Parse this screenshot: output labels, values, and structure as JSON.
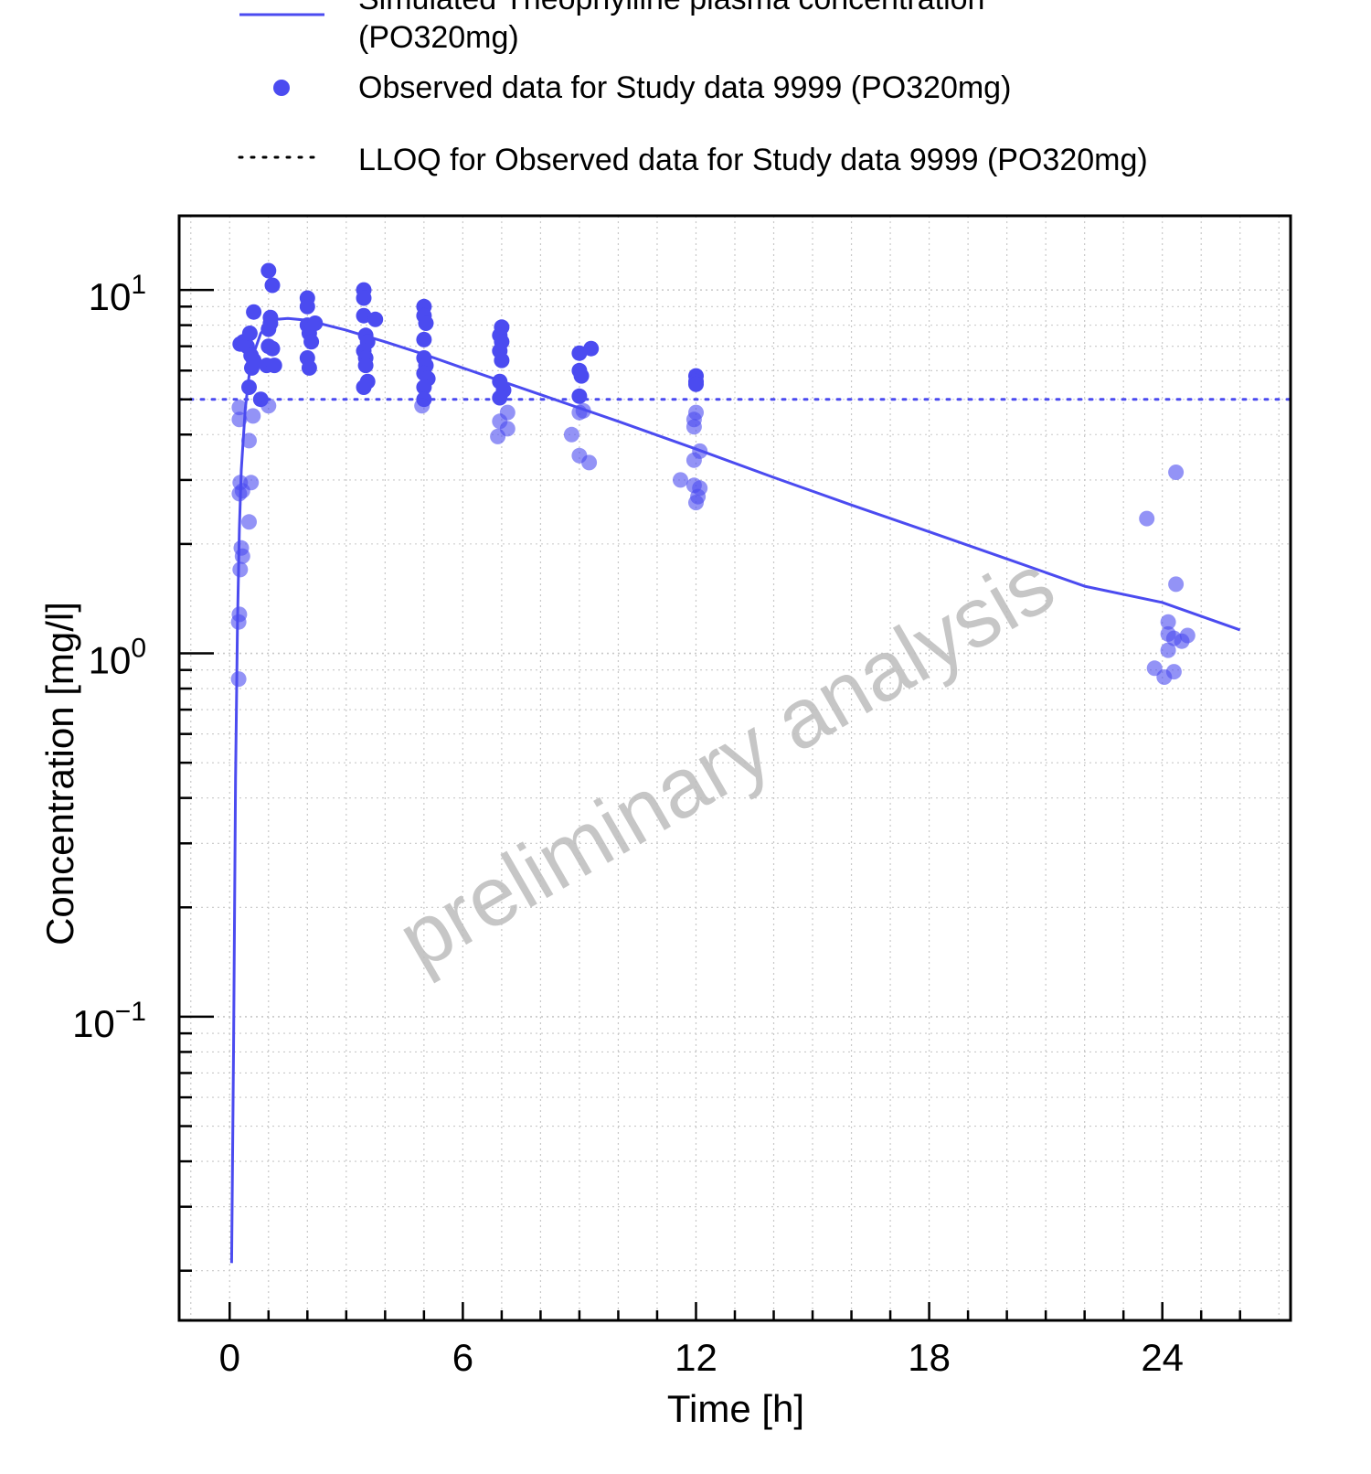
{
  "chart_data": {
    "type": "scatter",
    "xlabel": "Time [h]",
    "ylabel": "Concentration [mg/l]",
    "xlim": [
      -1.3,
      27.3
    ],
    "ylim": [
      0.0146,
      16
    ],
    "yscale": "log",
    "x_ticks": [
      {
        "value": 0,
        "label": "0"
      },
      {
        "value": 6,
        "label": "6"
      },
      {
        "value": 12,
        "label": "12"
      },
      {
        "value": 18,
        "label": "18"
      },
      {
        "value": 24,
        "label": "24"
      }
    ],
    "y_ticks": [
      {
        "value": 0.1,
        "base": "10",
        "exp": "−1"
      },
      {
        "value": 1,
        "base": "10",
        "exp": "0"
      },
      {
        "value": 10,
        "base": "10",
        "exp": "1"
      }
    ],
    "grid": true,
    "legend": "top",
    "watermark": "preliminary analysis",
    "colors": {
      "series": "#4b4bf0",
      "axis": "#000000",
      "grid": "#c8c8c8",
      "watermark": "#bdbdbd"
    },
    "series": [
      {
        "name_lines": [
          "Simulated Theophylline plasma concentration",
          "(PO320mg)"
        ],
        "kind": "line",
        "x": [
          0.05,
          0.1,
          0.15,
          0.2,
          0.25,
          0.3,
          0.4,
          0.5,
          0.6,
          0.8,
          1.0,
          1.2,
          1.5,
          2.0,
          3.0,
          4.0,
          5.0,
          6.0,
          8.0,
          10.0,
          12.0,
          14.0,
          16.0,
          18.0,
          20.0,
          22.0,
          24.0,
          26.0
        ],
        "y": [
          0.021,
          0.08,
          0.45,
          1.2,
          2.2,
          3.2,
          4.7,
          5.8,
          6.6,
          7.6,
          8.1,
          8.3,
          8.35,
          8.25,
          7.75,
          7.2,
          6.65,
          6.1,
          5.15,
          4.35,
          3.65,
          3.05,
          2.56,
          2.16,
          1.82,
          1.53,
          1.38,
          1.16
        ]
      },
      {
        "name": "Observed data for Study data 9999 (PO320mg)",
        "kind": "scatter",
        "points": [
          [
            0.23,
            0.85
          ],
          [
            0.23,
            1.22
          ],
          [
            0.25,
            1.28
          ],
          [
            0.27,
            1.7
          ],
          [
            0.3,
            1.95
          ],
          [
            0.33,
            1.85
          ],
          [
            0.25,
            2.75
          ],
          [
            0.27,
            2.95
          ],
          [
            0.33,
            2.8
          ],
          [
            0.5,
            2.3
          ],
          [
            0.55,
            2.95
          ],
          [
            0.25,
            4.4
          ],
          [
            0.25,
            4.75
          ],
          [
            0.5,
            3.85
          ],
          [
            0.6,
            4.5
          ],
          [
            0.27,
            7.1
          ],
          [
            0.35,
            7.2
          ],
          [
            0.45,
            7.0
          ],
          [
            0.52,
            7.6
          ],
          [
            0.55,
            6.6
          ],
          [
            0.57,
            6.1
          ],
          [
            0.62,
            6.4
          ],
          [
            0.5,
            5.4
          ],
          [
            0.62,
            8.7
          ],
          [
            0.8,
            5.0
          ],
          [
            0.95,
            6.2
          ],
          [
            1.0,
            7.0
          ],
          [
            1.0,
            7.8
          ],
          [
            1.05,
            8.1
          ],
          [
            1.05,
            8.4
          ],
          [
            1.0,
            4.8
          ],
          [
            1.1,
            6.9
          ],
          [
            1.15,
            6.2
          ],
          [
            1.0,
            11.3
          ],
          [
            1.1,
            10.3
          ],
          [
            2.0,
            9.5
          ],
          [
            2.0,
            9.0
          ],
          [
            2.0,
            8.0
          ],
          [
            2.05,
            7.6
          ],
          [
            2.1,
            7.2
          ],
          [
            2.2,
            8.1
          ],
          [
            2.0,
            6.5
          ],
          [
            2.05,
            6.1
          ],
          [
            3.45,
            10.0
          ],
          [
            3.45,
            9.5
          ],
          [
            3.45,
            8.5
          ],
          [
            3.5,
            7.5
          ],
          [
            3.55,
            7.2
          ],
          [
            3.45,
            6.8
          ],
          [
            3.5,
            6.5
          ],
          [
            3.5,
            6.2
          ],
          [
            3.55,
            5.6
          ],
          [
            3.45,
            5.4
          ],
          [
            3.75,
            8.3
          ],
          [
            5.0,
            9.0
          ],
          [
            5.0,
            8.5
          ],
          [
            5.05,
            8.1
          ],
          [
            5.0,
            7.3
          ],
          [
            5.0,
            6.5
          ],
          [
            5.05,
            6.2
          ],
          [
            5.0,
            5.9
          ],
          [
            5.1,
            5.7
          ],
          [
            5.0,
            5.4
          ],
          [
            5.0,
            5.0
          ],
          [
            4.95,
            4.8
          ],
          [
            7.0,
            7.9
          ],
          [
            6.95,
            7.5
          ],
          [
            7.0,
            7.2
          ],
          [
            6.95,
            6.8
          ],
          [
            7.0,
            6.4
          ],
          [
            6.95,
            5.6
          ],
          [
            7.05,
            5.3
          ],
          [
            6.95,
            5.05
          ],
          [
            7.15,
            4.6
          ],
          [
            6.95,
            4.35
          ],
          [
            7.15,
            4.15
          ],
          [
            6.9,
            3.95
          ],
          [
            9.0,
            6.7
          ],
          [
            9.3,
            6.9
          ],
          [
            9.0,
            6.0
          ],
          [
            9.05,
            5.8
          ],
          [
            9.0,
            5.1
          ],
          [
            9.0,
            4.6
          ],
          [
            9.1,
            4.65
          ],
          [
            8.8,
            4.0
          ],
          [
            9.0,
            3.5
          ],
          [
            9.25,
            3.35
          ],
          [
            12.0,
            5.8
          ],
          [
            12.0,
            5.6
          ],
          [
            12.0,
            5.5
          ],
          [
            12.0,
            4.6
          ],
          [
            11.95,
            4.4
          ],
          [
            11.95,
            4.2
          ],
          [
            12.1,
            3.6
          ],
          [
            11.95,
            3.4
          ],
          [
            11.95,
            2.9
          ],
          [
            12.1,
            2.85
          ],
          [
            12.05,
            2.7
          ],
          [
            12.0,
            2.6
          ],
          [
            11.6,
            3.0
          ],
          [
            23.6,
            2.35
          ],
          [
            24.35,
            3.15
          ],
          [
            24.35,
            1.55
          ],
          [
            24.15,
            1.22
          ],
          [
            24.15,
            1.13
          ],
          [
            24.3,
            1.1
          ],
          [
            24.5,
            1.08
          ],
          [
            24.65,
            1.12
          ],
          [
            24.15,
            1.02
          ],
          [
            23.8,
            0.91
          ],
          [
            24.05,
            0.86
          ],
          [
            24.3,
            0.89
          ]
        ]
      },
      {
        "name": "LLOQ for Observed data for Study data 9999 (PO320mg)",
        "kind": "hline",
        "y": 5.0
      }
    ]
  }
}
